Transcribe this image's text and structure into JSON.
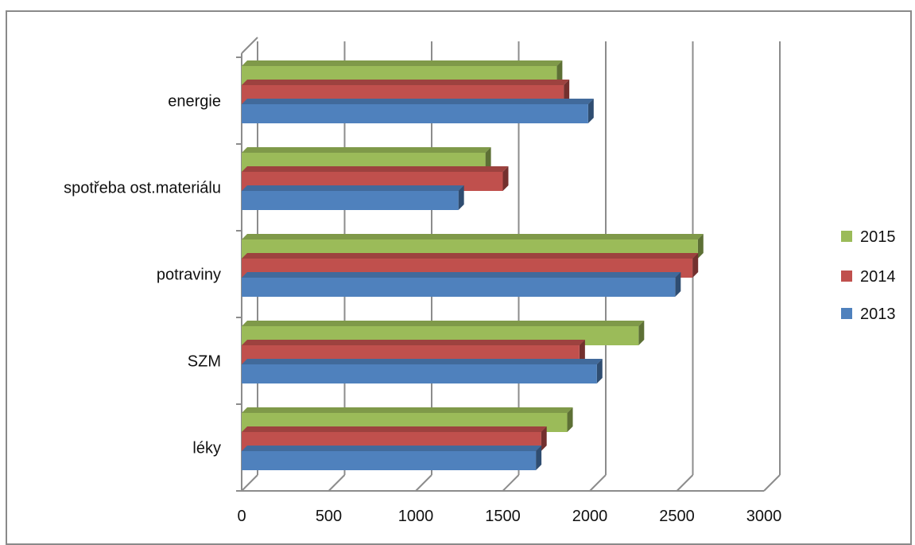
{
  "chart_data": {
    "type": "bar",
    "orientation": "horizontal",
    "style": "3d",
    "categories": [
      "léky",
      "SZM",
      "potraviny",
      "spotřeba ost.materiálu",
      "energie"
    ],
    "series": [
      {
        "name": "2013",
        "color": "#4F81BD",
        "values": [
          1690,
          2040,
          2490,
          1245,
          1990
        ]
      },
      {
        "name": "2014",
        "color": "#C0504D",
        "values": [
          1720,
          1940,
          2590,
          1500,
          1850
        ]
      },
      {
        "name": "2015",
        "color": "#9BBB59",
        "values": [
          1870,
          2280,
          2620,
          1400,
          1810
        ]
      }
    ],
    "xlim": [
      0,
      3000
    ],
    "xticks": [
      "0",
      "500",
      "1000",
      "1500",
      "2000",
      "2500",
      "3000"
    ],
    "grid": true,
    "legend_position": "right",
    "legend_order": [
      "2015",
      "2014",
      "2013"
    ]
  }
}
